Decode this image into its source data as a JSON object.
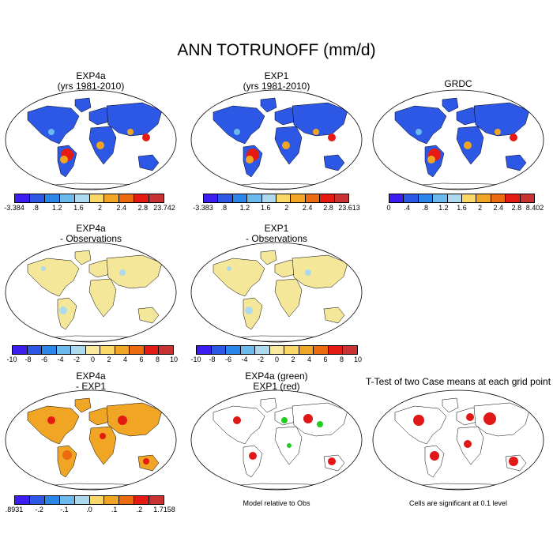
{
  "title": "ANN TOTRUNOFF (mm/d)",
  "colors": {
    "abs": [
      "#3c1ef0",
      "#2d57e5",
      "#2a86e8",
      "#6cb9ee",
      "#add9ee",
      "#fad766",
      "#f0a524",
      "#ec6b0e",
      "#e51b13",
      "#c93232"
    ],
    "diff": [
      "#3c1ef0",
      "#2d57e5",
      "#2a86e8",
      "#6cb9ee",
      "#add9ee",
      "#fae89c",
      "#fad766",
      "#f0a524",
      "#ec6b0e",
      "#e51b13",
      "#c93232"
    ],
    "land_obs_diff": "#f5e79a",
    "land_diff": "#f0a524",
    "sig_red": "#e01818",
    "sig_green": "#22cc22"
  },
  "panels": [
    {
      "line1": "EXP4a",
      "line2": "(yrs 1981-2010)",
      "ticks": [
        "-3.384",
        ".8",
        "1.2",
        "1.6",
        "2",
        "2.4",
        "2.8",
        "23.742"
      ]
    },
    {
      "line1": "EXP1",
      "line2": "(yrs 1981-2010)",
      "ticks": [
        "-3.383",
        ".8",
        "1.2",
        "1.6",
        "2",
        "2.4",
        "2.8",
        "23.613"
      ]
    },
    {
      "line1": "GRDC",
      "line2": "",
      "ticks": [
        "0",
        ".4",
        ".8",
        "1.2",
        "1.6",
        "2",
        "2.4",
        "2.8",
        "8.402"
      ]
    },
    {
      "line1": "EXP4a",
      "line2": "- Observations",
      "ticks": [
        "-10",
        "-8",
        "-6",
        "-4",
        "-2",
        "0",
        "2",
        "4",
        "6",
        "8",
        "10"
      ]
    },
    {
      "line1": "EXP1",
      "line2": "- Observations",
      "ticks": [
        "-10",
        "-8",
        "-6",
        "-4",
        "-2",
        "0",
        "2",
        "4",
        "6",
        "8",
        "10"
      ]
    },
    {
      "line1": "EXP4a",
      "line2": "- EXP1",
      "ticks": [
        ".8931",
        "-.2",
        "-.1",
        ".0",
        ".1",
        ".2",
        "1.7158"
      ]
    },
    {
      "line1": "EXP4a (green)",
      "line2": "EXP1 (red)"
    },
    {
      "line1": "T-Test of two Case means at each grid point",
      "line2": ""
    }
  ],
  "notes": {
    "model_relative": "Model relative to Obs",
    "cells_significant": "Cells are significant at 0.1 level"
  }
}
